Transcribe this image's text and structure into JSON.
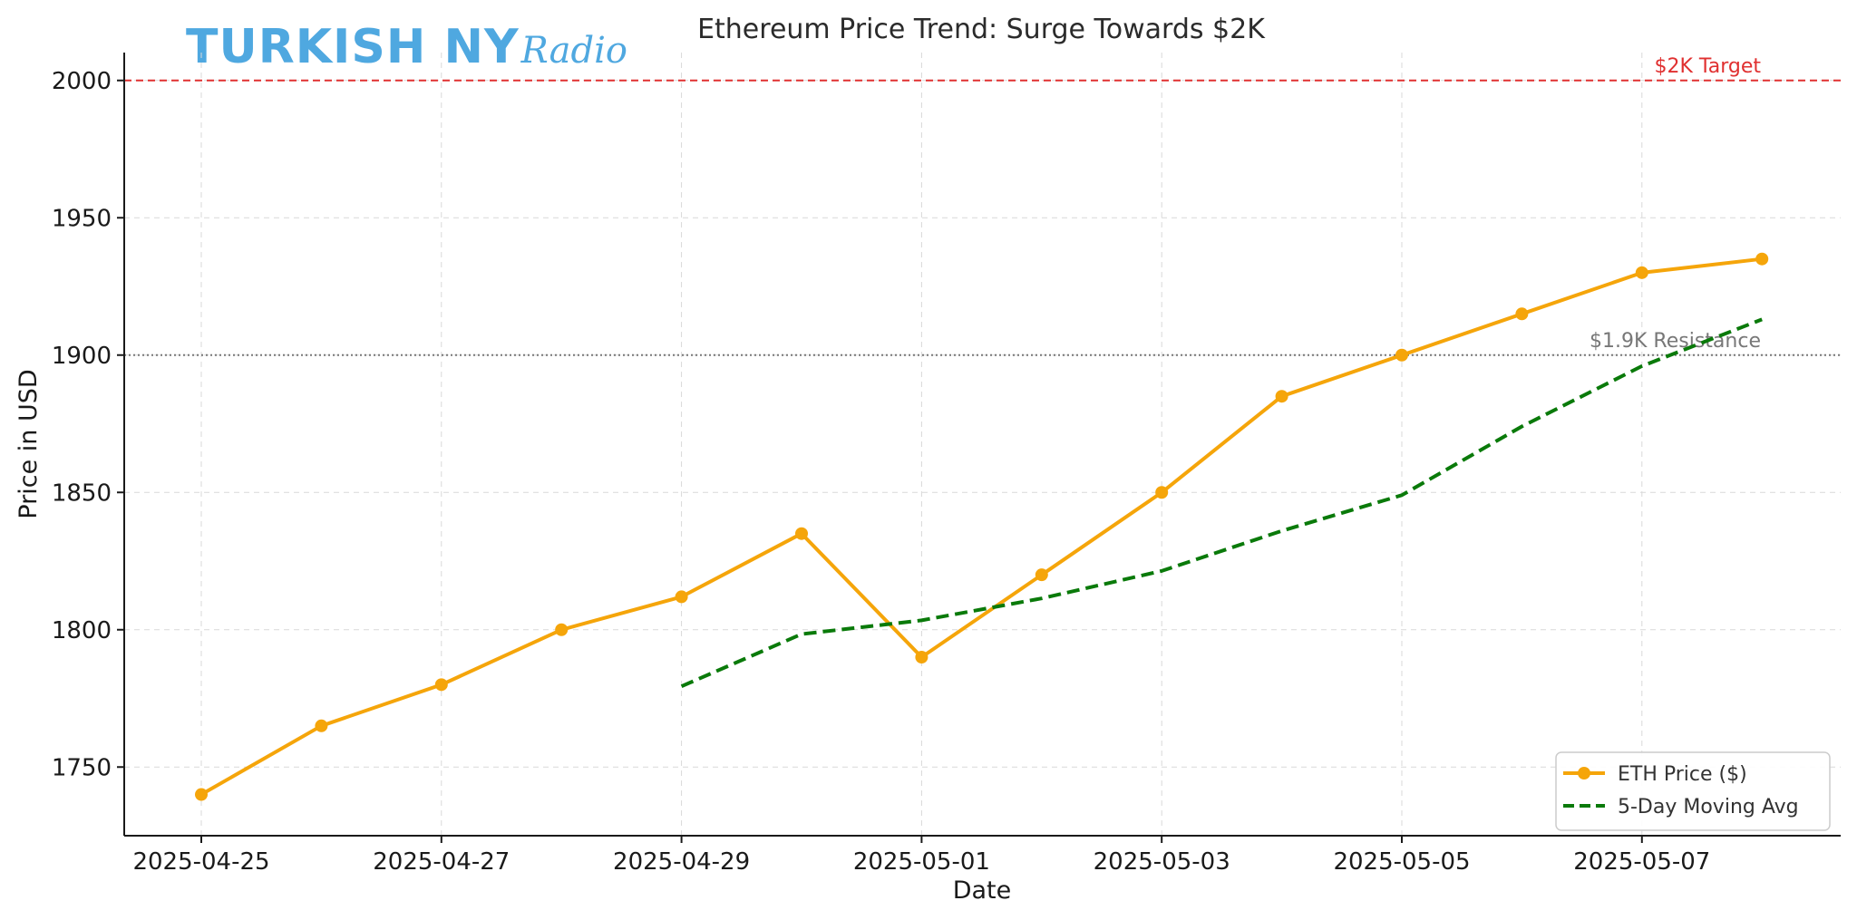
{
  "watermark": {
    "main": "TURKISH NY",
    "script": "Radio",
    "color": "#4fa8e0"
  },
  "chart_data": {
    "type": "line",
    "title": "Ethereum Price Trend: Surge Towards $2K",
    "xlabel": "Date",
    "ylabel": "Price in USD",
    "x": [
      "2025-04-25",
      "2025-04-26",
      "2025-04-27",
      "2025-04-28",
      "2025-04-29",
      "2025-04-30",
      "2025-05-01",
      "2025-05-02",
      "2025-05-03",
      "2025-05-04",
      "2025-05-05",
      "2025-05-06",
      "2025-05-07",
      "2025-05-08"
    ],
    "x_tick_labels": [
      "2025-04-25",
      "2025-04-27",
      "2025-04-29",
      "2025-05-01",
      "2025-05-03",
      "2025-05-05",
      "2025-05-07"
    ],
    "y_ticks": [
      1750,
      1800,
      1850,
      1900,
      1950,
      2000
    ],
    "ylim": [
      1725,
      2012
    ],
    "grid": true,
    "legend_position": "bottom-right",
    "series": [
      {
        "name": "ETH Price ($)",
        "color": "#f5a50a",
        "style": "solid-with-markers",
        "values": [
          1740,
          1765,
          1780,
          1800,
          1812,
          1835,
          1790,
          1820,
          1850,
          1885,
          1900,
          1915,
          1930,
          1935
        ]
      },
      {
        "name": "5-Day Moving Avg",
        "color": "#0a7a0a",
        "style": "dashed",
        "values": [
          null,
          null,
          null,
          null,
          1779.4,
          1798.4,
          1803.4,
          1811.4,
          1821.4,
          1836,
          1849,
          1874,
          1896,
          1913
        ]
      }
    ],
    "reference_lines": [
      {
        "label": "$2K Target",
        "value": 2000,
        "color": "#e03030",
        "style": "dashed"
      },
      {
        "label": "$1.9K Resistance",
        "value": 1900,
        "color": "#777777",
        "style": "dotted"
      }
    ]
  }
}
